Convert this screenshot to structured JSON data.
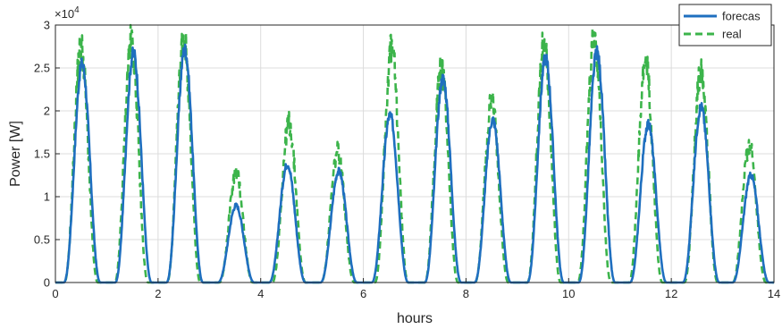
{
  "chart_data": {
    "type": "line",
    "xlabel": "hours",
    "ylabel": "Power [W]",
    "exponent_label": "×10",
    "exponent_power": "4",
    "xlim": [
      0,
      14
    ],
    "ylim": [
      0,
      3
    ],
    "y_scale_factor": 10000,
    "x_ticks": [
      0,
      2,
      4,
      6,
      8,
      10,
      12,
      14
    ],
    "y_ticks": [
      0,
      0.5,
      1,
      1.5,
      2,
      2.5,
      3
    ],
    "y_tick_labels": [
      "0",
      "0.5",
      "1",
      "1.5",
      "2",
      "2.5",
      "3"
    ],
    "grid": true,
    "legend_position": "top-right",
    "series": [
      {
        "name": "forecas",
        "color": "#1f6fbf",
        "style": "solid",
        "peaks": [
          {
            "center": 0.52,
            "peak": 2.55
          },
          {
            "center": 1.52,
            "peak": 2.68
          },
          {
            "center": 2.52,
            "peak": 2.72
          },
          {
            "center": 3.52,
            "peak": 0.9
          },
          {
            "center": 4.52,
            "peak": 1.38
          },
          {
            "center": 5.52,
            "peak": 1.3
          },
          {
            "center": 6.52,
            "peak": 1.95
          },
          {
            "center": 7.55,
            "peak": 2.38
          },
          {
            "center": 8.52,
            "peak": 1.9
          },
          {
            "center": 9.55,
            "peak": 2.62
          },
          {
            "center": 10.55,
            "peak": 2.68
          },
          {
            "center": 11.55,
            "peak": 1.85
          },
          {
            "center": 12.58,
            "peak": 2.05
          },
          {
            "center": 13.55,
            "peak": 1.25
          }
        ]
      },
      {
        "name": "real",
        "color": "#3cb44b",
        "style": "dashed",
        "peaks": [
          {
            "center": 0.5,
            "peak": 2.75
          },
          {
            "center": 1.48,
            "peak": 2.83
          },
          {
            "center": 2.5,
            "peak": 2.85
          },
          {
            "center": 3.52,
            "peak": 1.28
          },
          {
            "center": 4.55,
            "peak": 1.85
          },
          {
            "center": 5.5,
            "peak": 1.52
          },
          {
            "center": 6.55,
            "peak": 2.72
          },
          {
            "center": 7.52,
            "peak": 2.5
          },
          {
            "center": 8.5,
            "peak": 2.12
          },
          {
            "center": 9.52,
            "peak": 2.78
          },
          {
            "center": 10.5,
            "peak": 2.85
          },
          {
            "center": 11.5,
            "peak": 2.55
          },
          {
            "center": 12.58,
            "peak": 2.5
          },
          {
            "center": 13.52,
            "peak": 1.6
          }
        ]
      }
    ]
  }
}
